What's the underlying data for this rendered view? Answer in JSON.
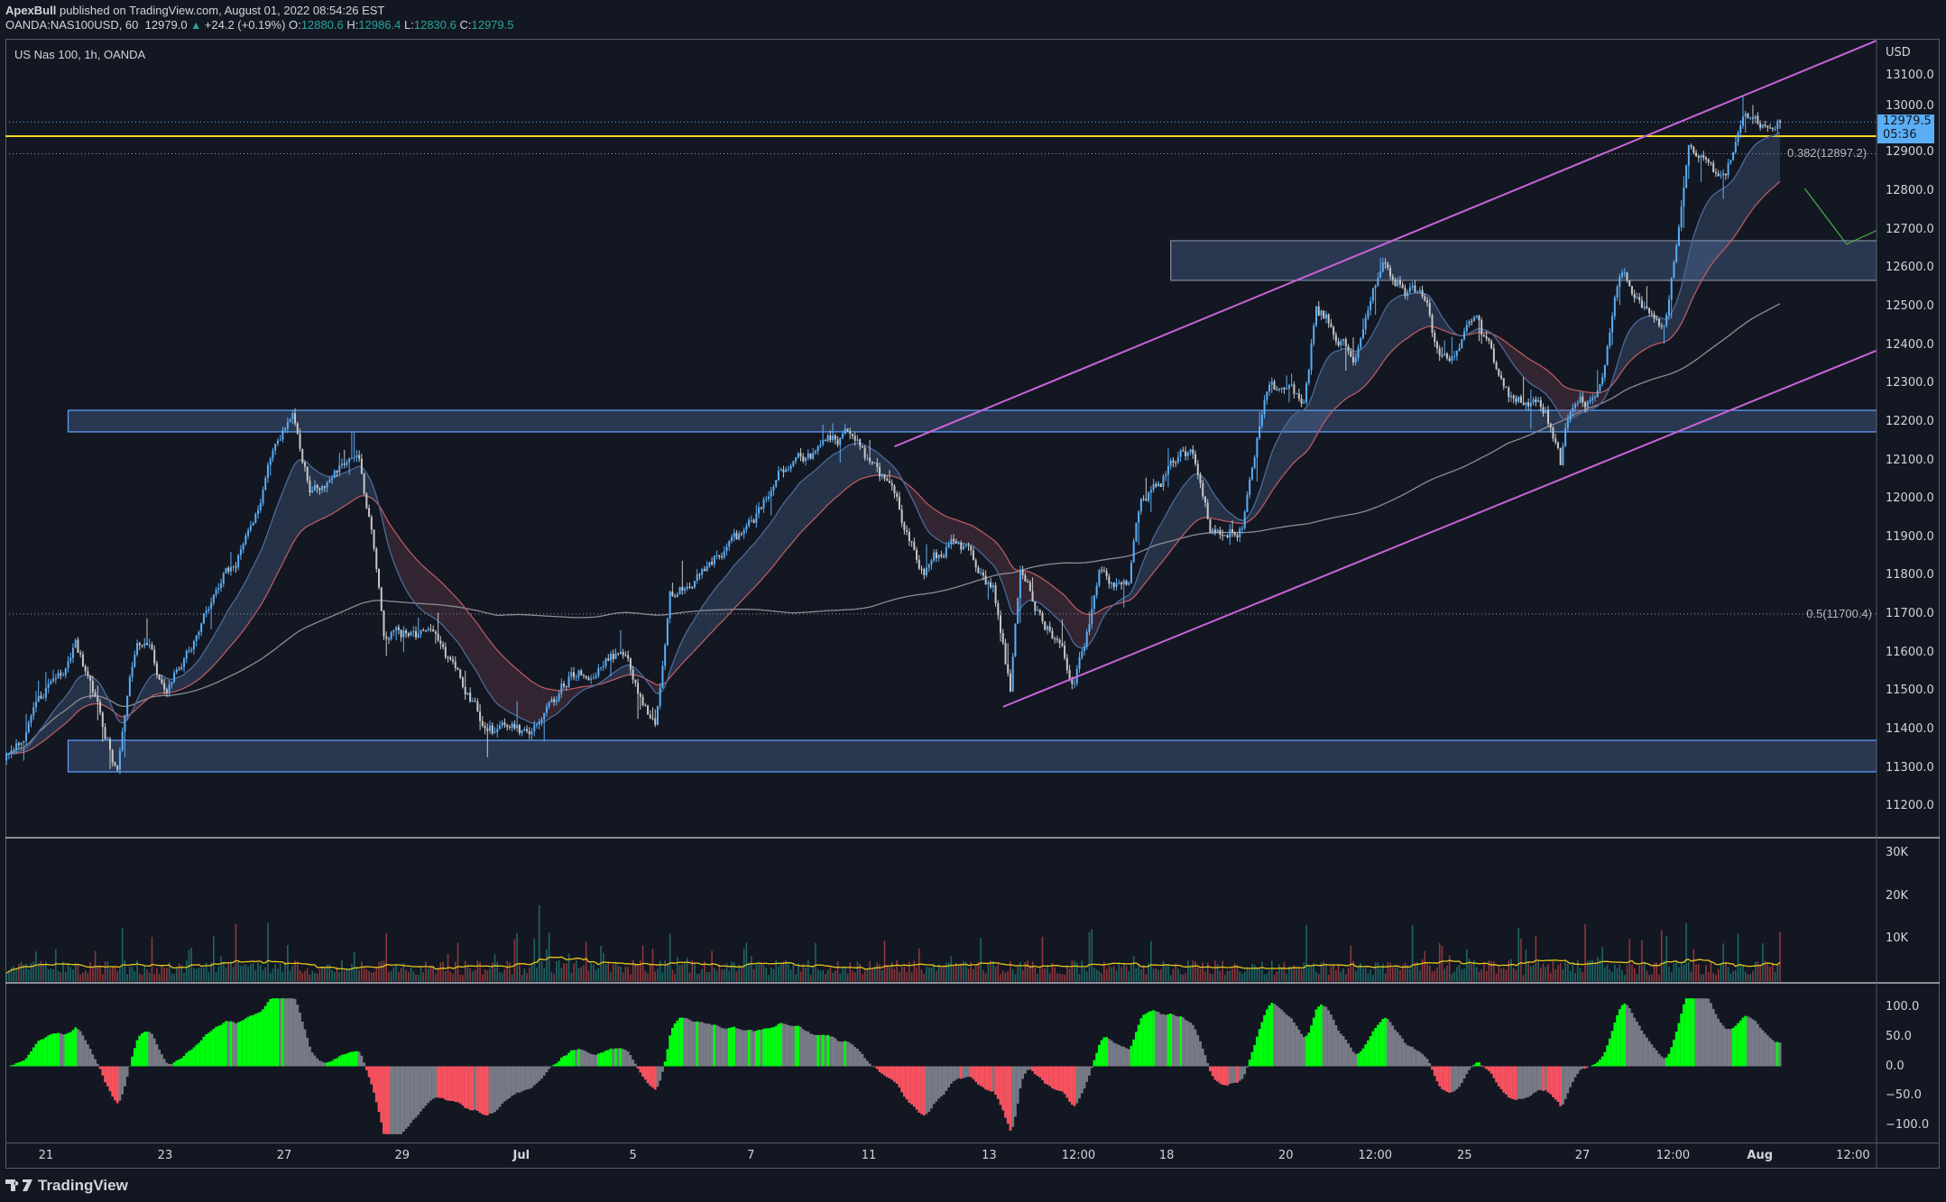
{
  "header": {
    "publisher": "ApexBull",
    "published_text": "published on TradingView.com, August 01, 2022 08:54:26 EST",
    "symbol": "OANDA:NAS100USD, 60",
    "last": "12979.0",
    "change": "+24.2 (+0.19%)",
    "o_label": "O:",
    "o": "12880.6",
    "h_label": "H:",
    "h": "12986.4",
    "l_label": "L:",
    "l": "12830.6",
    "c_label": "C:",
    "c": "12979.5"
  },
  "chart_title": "US Nas 100, 1h, OANDA",
  "price_axis": {
    "currency": "USD",
    "labels": [
      "13100.0",
      "13000.0",
      "12900.0",
      "12800.0",
      "12700.0",
      "12600.0",
      "12500.0",
      "12400.0",
      "12300.0",
      "12200.0",
      "12100.0",
      "12000.0",
      "11900.0",
      "11800.0",
      "11700.0",
      "11600.0",
      "11500.0",
      "11400.0",
      "11300.0",
      "11200.0"
    ],
    "current_price": "12979.5",
    "countdown": "05:36"
  },
  "volume_axis": {
    "labels": [
      "30K",
      "20K",
      "10K"
    ]
  },
  "osc_axis": {
    "labels": [
      "100.0",
      "50.0",
      "0.0",
      "−50.0",
      "−100.0"
    ]
  },
  "time_axis": {
    "labels": [
      "21",
      "23",
      "27",
      "29",
      "Jul",
      "5",
      "7",
      "11",
      "13",
      "12:00",
      "18",
      "20",
      "12:00",
      "25",
      "27",
      "12:00",
      "Aug",
      "12:00"
    ]
  },
  "brand": "TradingView",
  "colors": {
    "background": "#131722",
    "up_candle": "#5aaef5",
    "down_candle": "#c8c8c8",
    "channel": "#c964d8",
    "level": "#f2d820",
    "osc_up": "#00ff0f",
    "osc_neutral": "#787b86",
    "osc_down": "#f7525f",
    "zone_border": "#5b9cf6"
  },
  "chart_data": {
    "type": "candlestick",
    "symbol": "OANDA:NAS100USD",
    "interval": "1h",
    "ylim": [
      11150,
      13150
    ],
    "price_path": [
      {
        "t": "Jun 20 08",
        "price": 11320
      },
      {
        "t": "Jun 21 12",
        "price": 11620
      },
      {
        "t": "Jun 22 05",
        "price": 11300
      },
      {
        "t": "Jun 22 13",
        "price": 11650
      },
      {
        "t": "Jun 23 01",
        "price": 11500
      },
      {
        "t": "Jun 23 16",
        "price": 11700
      },
      {
        "t": "Jun 24 10",
        "price": 11900
      },
      {
        "t": "Jun 24 18",
        "price": 12080
      },
      {
        "t": "Jun 27 04",
        "price": 12200
      },
      {
        "t": "Jun 27 11",
        "price": 12050
      },
      {
        "t": "Jun 28 07",
        "price": 12100
      },
      {
        "t": "Jun 28 12",
        "price": 11900
      },
      {
        "t": "Jun 28 17",
        "price": 11650
      },
      {
        "t": "Jun 29 13",
        "price": 11650
      },
      {
        "t": "Jun 30 10",
        "price": 11400
      },
      {
        "t": "Jul 1 01",
        "price": 11380
      },
      {
        "t": "Jul 1 21",
        "price": 11550
      },
      {
        "t": "Jul 4 17",
        "price": 11600
      },
      {
        "t": "Jul 5 07",
        "price": 11400
      },
      {
        "t": "Jul 5 13",
        "price": 11750
      },
      {
        "t": "Jul 6 19",
        "price": 11900
      },
      {
        "t": "Jul 7 13",
        "price": 12100
      },
      {
        "t": "Jul 8 12",
        "price": 12150
      },
      {
        "t": "Jul 11 08",
        "price": 12000
      },
      {
        "t": "Jul 11 20",
        "price": 11800
      },
      {
        "t": "Jul 12 09",
        "price": 11900
      },
      {
        "t": "Jul 13 00",
        "price": 11750
      },
      {
        "t": "Jul 13 07",
        "price": 11500
      },
      {
        "t": "Jul 13 11",
        "price": 11800
      },
      {
        "t": "Jul 14 01",
        "price": 11650
      },
      {
        "t": "Jul 14 09",
        "price": 11520
      },
      {
        "t": "Jul 14 19",
        "price": 11800
      },
      {
        "t": "Jul 15 07",
        "price": 11750
      },
      {
        "t": "Jul 15 12",
        "price": 12000
      },
      {
        "t": "Jul 18 08",
        "price": 12130
      },
      {
        "t": "Jul 18 16",
        "price": 11900
      },
      {
        "t": "Jul 19 05",
        "price": 11950
      },
      {
        "t": "Jul 19 15",
        "price": 12300
      },
      {
        "t": "Jul 20 06",
        "price": 12250
      },
      {
        "t": "Jul 20 11",
        "price": 12500
      },
      {
        "t": "Jul 21 02",
        "price": 12400
      },
      {
        "t": "Jul 21 14",
        "price": 12600
      },
      {
        "t": "Jul 22 08",
        "price": 12500
      },
      {
        "t": "Jul 22 13",
        "price": 12350
      },
      {
        "t": "Jul 25 04",
        "price": 12450
      },
      {
        "t": "Jul 25 17",
        "price": 12250
      },
      {
        "t": "Jul 26 08",
        "price": 12230
      },
      {
        "t": "Jul 26 14",
        "price": 12080
      },
      {
        "t": "Jul 26 18",
        "price": 12230
      },
      {
        "t": "Jul 27 06",
        "price": 12270
      },
      {
        "t": "Jul 27 14",
        "price": 12600
      },
      {
        "t": "Jul 28 08",
        "price": 12450
      },
      {
        "t": "Jul 28 18",
        "price": 12900
      },
      {
        "t": "Jul 29 09",
        "price": 12820
      },
      {
        "t": "Jul 29 16",
        "price": 12950
      },
      {
        "t": "Aug 1 07",
        "price": 12979.5
      }
    ],
    "zones": [
      {
        "top": 12230,
        "bottom": 12174,
        "from": "Jun 21 09"
      },
      {
        "top": 11372,
        "bottom": 11290,
        "from": "Jun 21 09"
      },
      {
        "top": 12671,
        "bottom": 12568,
        "from": "Jul 18 00"
      }
    ],
    "horizontal_level": 12943,
    "fib_levels": [
      {
        "label": "0.382(12897.2)",
        "price": 12897.2
      },
      {
        "label": "0.5(11700.4)",
        "price": 11700.4
      }
    ],
    "channel": [
      {
        "from": {
          "t": "Jul 11 08",
          "price": 12136
        },
        "to": {
          "t": "Aug 2 22",
          "price": 13191
        }
      },
      {
        "from": {
          "t": "Jul 13 04",
          "price": 11459
        },
        "to": {
          "t": "Aug 2 22",
          "price": 12385
        }
      }
    ],
    "projection": [
      {
        "t": "Aug 1 17",
        "price": 12807
      },
      {
        "t": "Aug 2 10",
        "price": 12662
      },
      {
        "t": "Aug 2 22",
        "price": 12697
      }
    ],
    "volume_ylim": [
      0,
      30000
    ],
    "osc_ylim": [
      -120,
      120
    ]
  }
}
